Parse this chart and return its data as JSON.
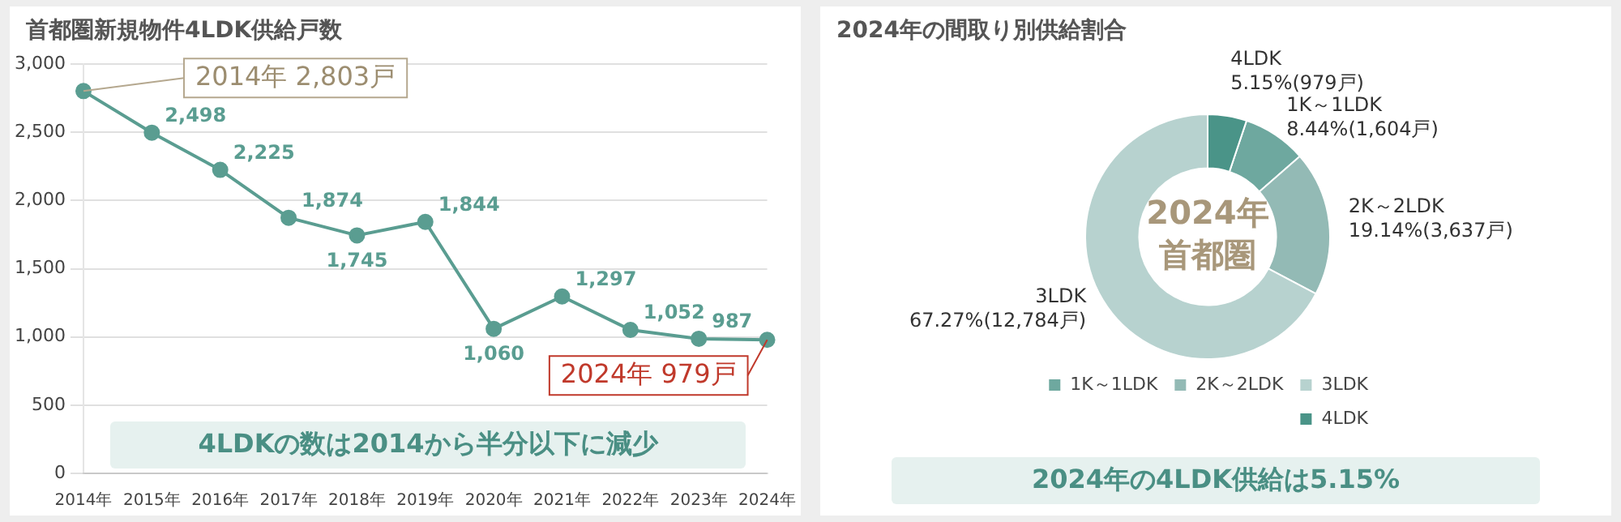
{
  "chart_data": [
    {
      "type": "line",
      "title": "首都圏新規物件4LDK供給戸数",
      "categories": [
        "2014年",
        "2015年",
        "2016年",
        "2017年",
        "2018年",
        "2019年",
        "2020年",
        "2021年",
        "2022年",
        "2023年",
        "2024年"
      ],
      "series": [
        {
          "color": "#5a9d91",
          "values": [
            2803,
            2498,
            2225,
            1874,
            1745,
            1844,
            1060,
            1297,
            1052,
            987,
            979
          ],
          "value_labels": [
            null,
            "2,498",
            "2,225",
            "1,874",
            "1,745",
            "1,844",
            "1,060",
            "1,297",
            "1,052",
            "987",
            null
          ]
        }
      ],
      "ylim": [
        0,
        3000
      ],
      "yticks": [
        0,
        {
          "value": 500,
          "label": "500"
        },
        {
          "value": 1000,
          "label": "1,000"
        },
        {
          "value": 1500,
          "label": "1,500"
        },
        {
          "value": 2000,
          "label": "2,000"
        },
        {
          "value": 2500,
          "label": "2,500"
        },
        {
          "value": 3000,
          "label": "3,000"
        }
      ],
      "grid": "y",
      "legend": false,
      "marker": "circle",
      "line_style": "solid",
      "annotations": [
        {
          "text": "2014年 2,803戸",
          "x": "2014年",
          "y": 2803
        },
        {
          "text": "2024年 979戸",
          "x": "2024年",
          "y": 979
        },
        "4LDKの数は2014から半分以下に減少"
      ]
    },
    {
      "type": "donut",
      "title": "2024年の間取り別供給割合",
      "categories": [
        "1K～1LDK",
        "2K～2LDK",
        "3LDK",
        "4LDK"
      ],
      "values": [
        8.44,
        19.14,
        67.27,
        5.15
      ],
      "colors": [
        "#6ea89f",
        "#93bab5",
        "#b7d2cf",
        "#4a9488"
      ],
      "value_labels": [
        "8.44%(1,604戸)",
        "19.14%(3,637戸)",
        "67.27%(12,784戸)",
        "5.15%(979戸)"
      ],
      "legend": "bottom right",
      "annotations": [
        "2024年",
        "首都圏",
        "2024年の4LDK供給は5.15%"
      ]
    }
  ]
}
